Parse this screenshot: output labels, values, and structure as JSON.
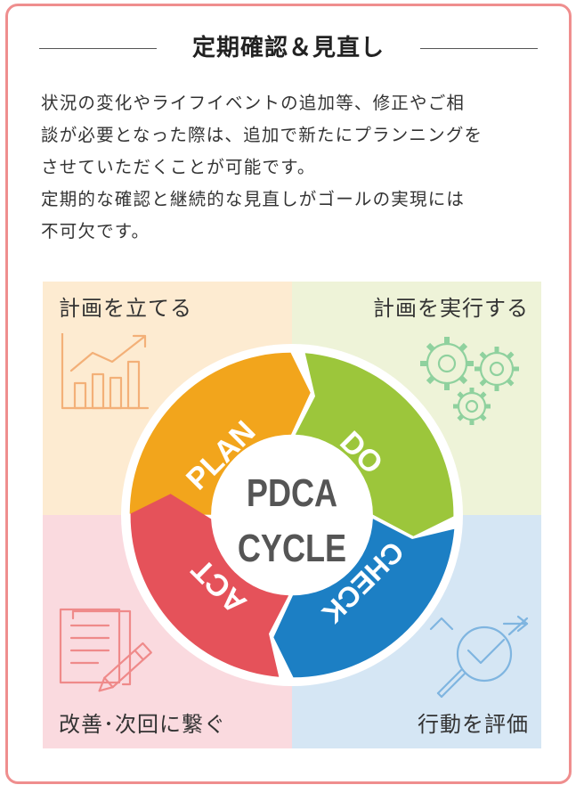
{
  "heading": "定期確認＆見直し",
  "intro": {
    "paragraph1_line1": "状況の変化やライフイベントの追加等、修正やご相",
    "paragraph1_line2": "談が必要となった際は、追加で新たにプランニングを",
    "paragraph1_line3": "させていただくことが可能です。",
    "paragraph2_line1": "定期的な確認と継続的な見直しがゴールの実現には",
    "paragraph2_line2": "不可欠です。"
  },
  "quadrants": {
    "plan": "計画を立てる",
    "do": "計画を実行する",
    "act": "改善･次回に繋ぐ",
    "check": "行動を評価"
  },
  "cycle": {
    "center_line1": "PDCA",
    "center_line2": "CYCLE",
    "segments": {
      "plan": "PLAN",
      "do": "DO",
      "check": "CHECK",
      "act": "ACT"
    }
  },
  "colors": {
    "border": "#ef8e8e",
    "plan": "#f2a51c",
    "do": "#9cc63b",
    "check": "#1c7fc4",
    "act": "#e5525a",
    "plan_bg": "#fdebd1",
    "do_bg": "#eef3d8",
    "check_bg": "#d5e6f4",
    "act_bg": "#fadadf",
    "center_text": "#555555"
  },
  "icons": {
    "plan": "bar-chart-trend-icon",
    "do": "gears-icon",
    "check": "magnifier-checkmark-icon",
    "act": "documents-pencil-icon"
  }
}
